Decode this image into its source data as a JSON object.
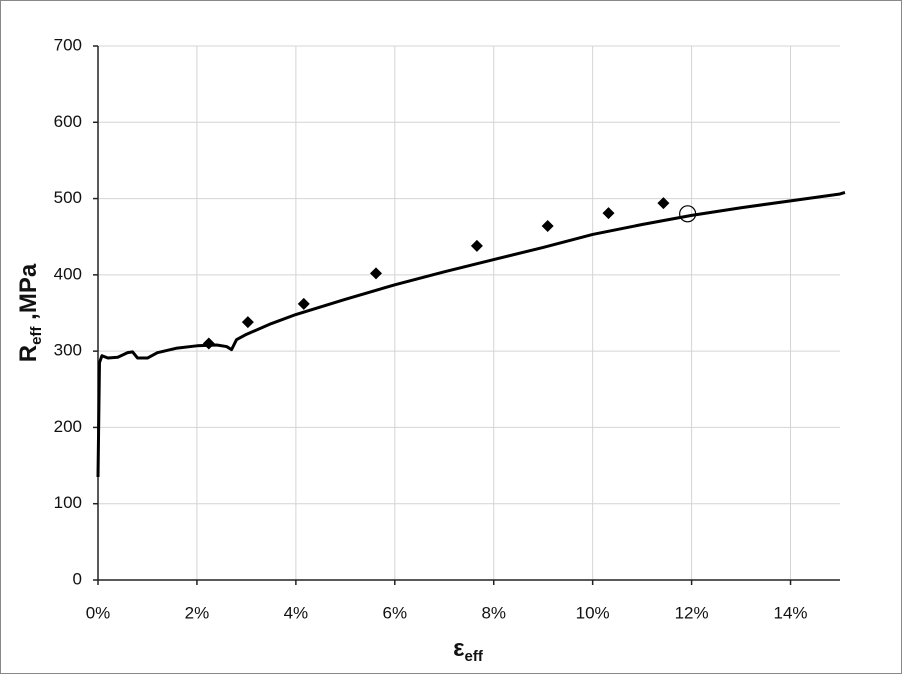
{
  "chart_data": {
    "type": "line",
    "y_label": {
      "main": "R",
      "sub": "eff",
      "rest": " ,MPa"
    },
    "x_label": {
      "main": "ε",
      "sub": "eff"
    },
    "xlim": [
      0,
      15
    ],
    "ylim": [
      0,
      700
    ],
    "xticks": [
      {
        "value": 0,
        "label": "0%"
      },
      {
        "value": 2,
        "label": "2%"
      },
      {
        "value": 4,
        "label": "4%"
      },
      {
        "value": 6,
        "label": "6%"
      },
      {
        "value": 8,
        "label": "8%"
      },
      {
        "value": 10,
        "label": "10%"
      },
      {
        "value": 12,
        "label": "12%"
      },
      {
        "value": 14,
        "label": "14%"
      }
    ],
    "yticks": [
      0,
      100,
      200,
      300,
      400,
      500,
      600,
      700
    ],
    "grid": true,
    "series": [
      {
        "marker": "none",
        "color": "#000000",
        "x": [
          0,
          0.03,
          0.08,
          0.2,
          0.4,
          0.6,
          0.7,
          0.8,
          1.0,
          1.2,
          1.6,
          2.0,
          2.4,
          2.6,
          2.7,
          2.8,
          3.0,
          3.5,
          4,
          5,
          6,
          7,
          8,
          9,
          10,
          11,
          12,
          13,
          14,
          15,
          15.1
        ],
        "values": [
          135,
          285,
          294,
          291,
          292,
          298,
          299,
          291,
          291,
          298,
          304,
          307,
          308,
          306,
          302,
          315,
          322,
          336,
          348,
          368,
          387,
          404,
          420,
          436,
          453,
          466,
          478,
          488,
          497,
          506,
          508
        ]
      },
      {
        "marker": "diamond",
        "color": "#000000",
        "x": [
          2.24,
          3.03,
          4.16,
          5.62,
          7.66,
          9.09,
          10.32,
          11.43
        ],
        "values": [
          310,
          338,
          362,
          402,
          438,
          464,
          481,
          494
        ]
      },
      {
        "marker": "open-circle",
        "color": "#000000",
        "x": [
          11.92
        ],
        "values": [
          480
        ]
      }
    ]
  }
}
